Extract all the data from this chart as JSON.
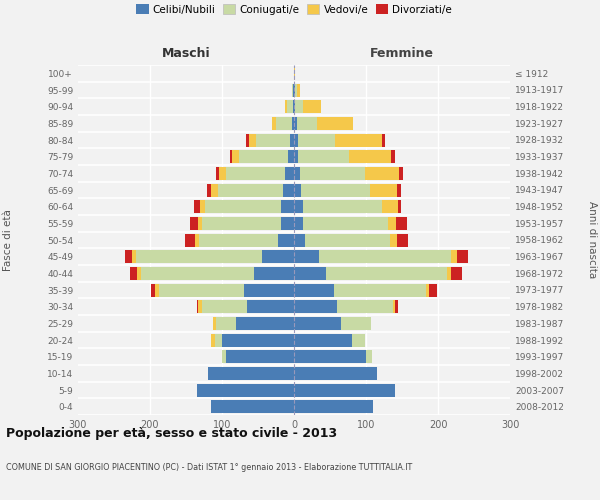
{
  "age_groups": [
    "0-4",
    "5-9",
    "10-14",
    "15-19",
    "20-24",
    "25-29",
    "30-34",
    "35-39",
    "40-44",
    "45-49",
    "50-54",
    "55-59",
    "60-64",
    "65-69",
    "70-74",
    "75-79",
    "80-84",
    "85-89",
    "90-94",
    "95-99",
    "100+"
  ],
  "birth_years": [
    "2008-2012",
    "2003-2007",
    "1998-2002",
    "1993-1997",
    "1988-1992",
    "1983-1987",
    "1978-1982",
    "1973-1977",
    "1968-1972",
    "1963-1967",
    "1958-1962",
    "1953-1957",
    "1948-1952",
    "1943-1947",
    "1938-1942",
    "1933-1937",
    "1928-1932",
    "1923-1927",
    "1918-1922",
    "1913-1917",
    "≤ 1912"
  ],
  "maschi": {
    "celibi": [
      115,
      135,
      120,
      95,
      100,
      80,
      65,
      70,
      55,
      45,
      22,
      18,
      18,
      15,
      12,
      8,
      5,
      3,
      2,
      1,
      0
    ],
    "coniugati": [
      0,
      0,
      0,
      5,
      10,
      28,
      63,
      118,
      158,
      175,
      110,
      110,
      105,
      90,
      82,
      68,
      48,
      22,
      8,
      2,
      0
    ],
    "vedovi": [
      0,
      0,
      0,
      0,
      5,
      5,
      5,
      5,
      5,
      5,
      5,
      5,
      8,
      10,
      10,
      10,
      10,
      5,
      2,
      0,
      0
    ],
    "divorziati": [
      0,
      0,
      0,
      0,
      0,
      0,
      2,
      5,
      10,
      10,
      15,
      12,
      8,
      6,
      4,
      3,
      3,
      0,
      0,
      0,
      0
    ]
  },
  "femmine": {
    "nubili": [
      110,
      140,
      115,
      100,
      80,
      65,
      60,
      55,
      45,
      35,
      15,
      12,
      12,
      10,
      8,
      5,
      5,
      4,
      2,
      1,
      0
    ],
    "coniugate": [
      0,
      0,
      0,
      8,
      18,
      42,
      78,
      128,
      168,
      183,
      118,
      118,
      110,
      95,
      90,
      72,
      52,
      28,
      10,
      3,
      0
    ],
    "vedove": [
      0,
      0,
      0,
      0,
      0,
      0,
      2,
      5,
      5,
      8,
      10,
      12,
      22,
      38,
      48,
      58,
      65,
      50,
      25,
      5,
      1
    ],
    "divorziate": [
      0,
      0,
      0,
      0,
      0,
      0,
      5,
      10,
      15,
      15,
      15,
      15,
      5,
      5,
      5,
      5,
      5,
      0,
      0,
      0,
      0
    ]
  },
  "colors": {
    "celibi": "#4a7db5",
    "coniugati": "#c8daa4",
    "vedovi": "#f5c84a",
    "divorziati": "#cc2222"
  },
  "title": "Popolazione per età, sesso e stato civile - 2013",
  "subtitle": "COMUNE DI SAN GIORGIO PIACENTINO (PC) - Dati ISTAT 1° gennaio 2013 - Elaborazione TUTTITALIA.IT",
  "xlabel_left": "Maschi",
  "xlabel_right": "Femmine",
  "ylabel_left": "Fasce di età",
  "ylabel_right": "Anni di nascita",
  "xlim": 300,
  "xticks": [
    -300,
    -200,
    -100,
    0,
    100,
    200,
    300
  ],
  "xticklabels": [
    "300",
    "200",
    "100",
    "0",
    "100",
    "200",
    "300"
  ],
  "legend_labels": [
    "Celibi/Nubili",
    "Coniugati/e",
    "Vedovi/e",
    "Divorziati/e"
  ],
  "background_color": "#f2f2f2",
  "grid_color": "#ffffff",
  "center_line_color": "#9999bb"
}
